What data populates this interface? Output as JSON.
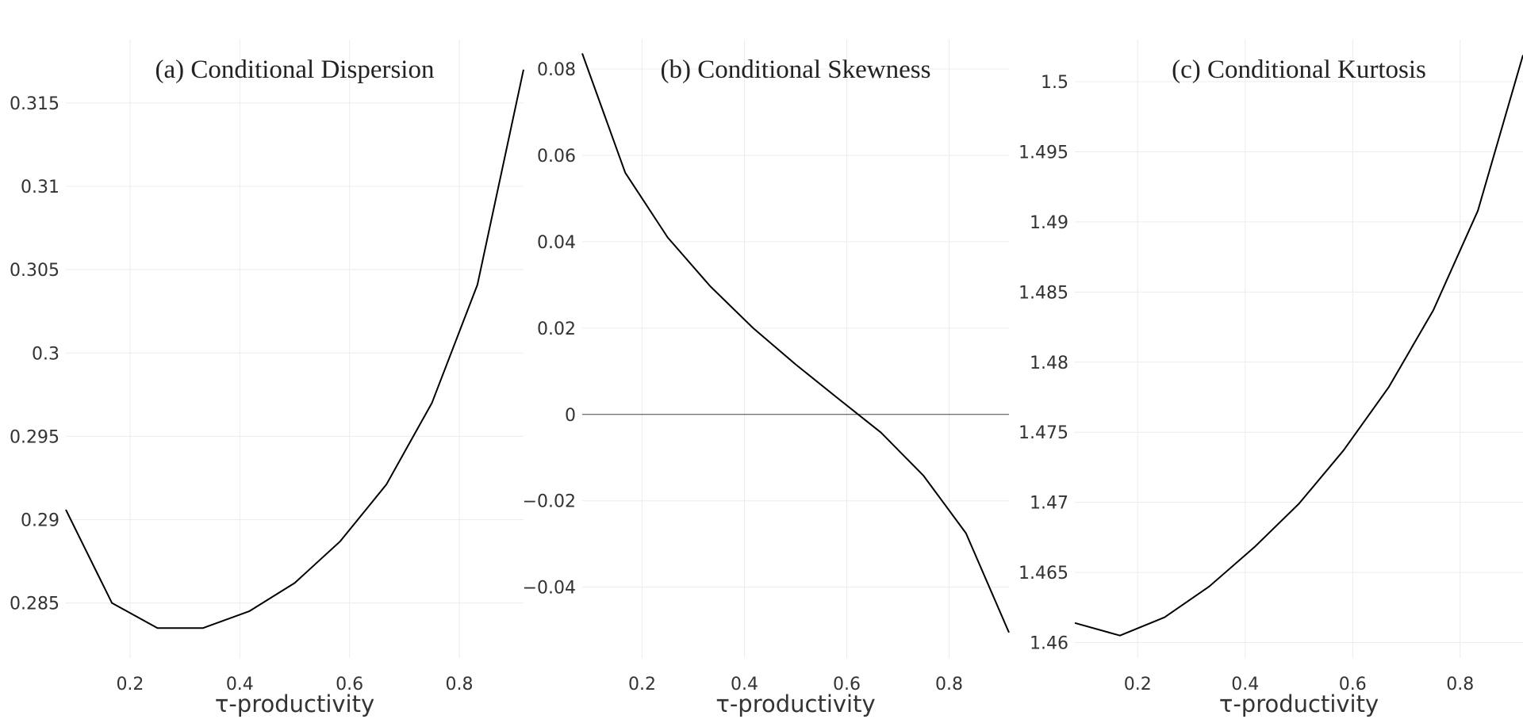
{
  "chart_data": [
    {
      "type": "line",
      "title": "(a) Conditional Dispersion",
      "xlabel": "τ-productivity",
      "ylabel": "",
      "xlim": [
        0.083,
        0.917
      ],
      "ylim": [
        0.2817,
        0.3188
      ],
      "grid": true,
      "xticks": [
        0.2,
        0.4,
        0.6,
        0.8
      ],
      "xtick_labels": [
        "0.2",
        "0.4",
        "0.6",
        "0.8"
      ],
      "yticks": [
        0.285,
        0.29,
        0.295,
        0.3,
        0.305,
        0.31,
        0.315
      ],
      "ytick_labels": [
        "0.285",
        "0.29",
        "0.295",
        "0.3",
        "0.305",
        "0.31",
        "0.315"
      ],
      "series": [
        {
          "x": [
            0.083,
            0.167,
            0.25,
            0.333,
            0.417,
            0.5,
            0.583,
            0.667,
            0.75,
            0.833,
            0.917
          ],
          "y": [
            0.2906,
            0.285,
            0.2835,
            0.2835,
            0.2845,
            0.2862,
            0.2887,
            0.2921,
            0.297,
            0.3041,
            0.317
          ],
          "color": "#000000"
        }
      ]
    },
    {
      "type": "line",
      "title": "(b) Conditional Skewness",
      "xlabel": "τ-productivity",
      "ylabel": "",
      "xlim": [
        0.083,
        0.917
      ],
      "ylim": [
        -0.0564,
        0.0868
      ],
      "grid": true,
      "zero_line": true,
      "xticks": [
        0.2,
        0.4,
        0.6,
        0.8
      ],
      "xtick_labels": [
        "0.2",
        "0.4",
        "0.6",
        "0.8"
      ],
      "yticks": [
        -0.04,
        -0.02,
        0,
        0.02,
        0.04,
        0.06,
        0.08
      ],
      "ytick_labels": [
        "−0.04",
        "−0.02",
        "0",
        "0.02",
        "0.04",
        "0.06",
        "0.08"
      ],
      "series": [
        {
          "x": [
            0.083,
            0.167,
            0.25,
            0.333,
            0.417,
            0.5,
            0.583,
            0.667,
            0.75,
            0.833,
            0.917
          ],
          "y": [
            0.0836,
            0.056,
            0.041,
            0.0297,
            0.02,
            0.0116,
            0.0037,
            -0.0042,
            -0.0142,
            -0.0275,
            -0.0505
          ],
          "color": "#000000"
        }
      ]
    },
    {
      "type": "line",
      "title": "(c) Conditional Kurtosis",
      "xlabel": "τ-productivity",
      "ylabel": "",
      "xlim": [
        0.083,
        0.917
      ],
      "ylim": [
        1.4589,
        1.503
      ],
      "grid": true,
      "xticks": [
        0.2,
        0.4,
        0.6,
        0.8
      ],
      "xtick_labels": [
        "0.2",
        "0.4",
        "0.6",
        "0.8"
      ],
      "yticks": [
        1.46,
        1.465,
        1.47,
        1.475,
        1.48,
        1.485,
        1.49,
        1.495,
        1.5
      ],
      "ytick_labels": [
        "1.46",
        "1.465",
        "1.47",
        "1.475",
        "1.48",
        "1.485",
        "1.49",
        "1.495",
        "1.5"
      ],
      "series": [
        {
          "x": [
            0.083,
            0.167,
            0.25,
            0.333,
            0.417,
            0.5,
            0.583,
            0.667,
            0.75,
            0.833,
            0.917
          ],
          "y": [
            1.4614,
            1.4605,
            1.4618,
            1.464,
            1.4668,
            1.4699,
            1.4737,
            1.4782,
            1.4837,
            1.4908,
            1.5019
          ],
          "color": "#000000"
        }
      ]
    }
  ]
}
